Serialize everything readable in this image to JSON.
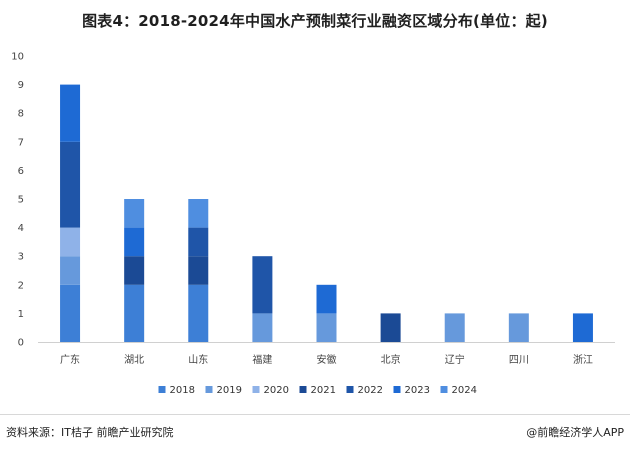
{
  "chart_data": {
    "type": "bar",
    "stacked": true,
    "title": "图表4：2018-2024年中国水产预制菜行业融资区域分布(单位：起)",
    "xlabel": "",
    "ylabel": "",
    "ylim": [
      0,
      10
    ],
    "yticks": [
      0,
      1,
      2,
      3,
      4,
      5,
      6,
      7,
      8,
      9,
      10
    ],
    "grid": false,
    "legend_position": "bottom",
    "categories": [
      "广东",
      "湖北",
      "山东",
      "福建",
      "安徽",
      "北京",
      "辽宁",
      "四川",
      "浙江"
    ],
    "series": [
      {
        "name": "2018",
        "color": "#3d7fd6",
        "values": [
          2,
          2,
          2,
          0,
          0,
          0,
          0,
          0,
          0
        ]
      },
      {
        "name": "2019",
        "color": "#6699dc",
        "values": [
          1,
          0,
          0,
          1,
          1,
          0,
          1,
          1,
          0
        ]
      },
      {
        "name": "2020",
        "color": "#8fb2e8",
        "values": [
          1,
          0,
          0,
          0,
          0,
          0,
          0,
          0,
          0
        ]
      },
      {
        "name": "2021",
        "color": "#1b4a95",
        "values": [
          0,
          1,
          1,
          0,
          0,
          1,
          0,
          0,
          0
        ]
      },
      {
        "name": "2022",
        "color": "#1f55a8",
        "values": [
          3,
          0,
          1,
          2,
          0,
          0,
          0,
          0,
          0
        ]
      },
      {
        "name": "2023",
        "color": "#1e6ad4",
        "values": [
          2,
          1,
          0,
          0,
          1,
          0,
          0,
          0,
          1
        ]
      },
      {
        "name": "2024",
        "color": "#4f8ee0",
        "values": [
          0,
          1,
          1,
          0,
          0,
          0,
          0,
          0,
          0
        ]
      }
    ]
  },
  "footer": {
    "source": "资料来源：IT桔子 前瞻产业研究院",
    "brand": "@前瞻经济学人APP"
  }
}
